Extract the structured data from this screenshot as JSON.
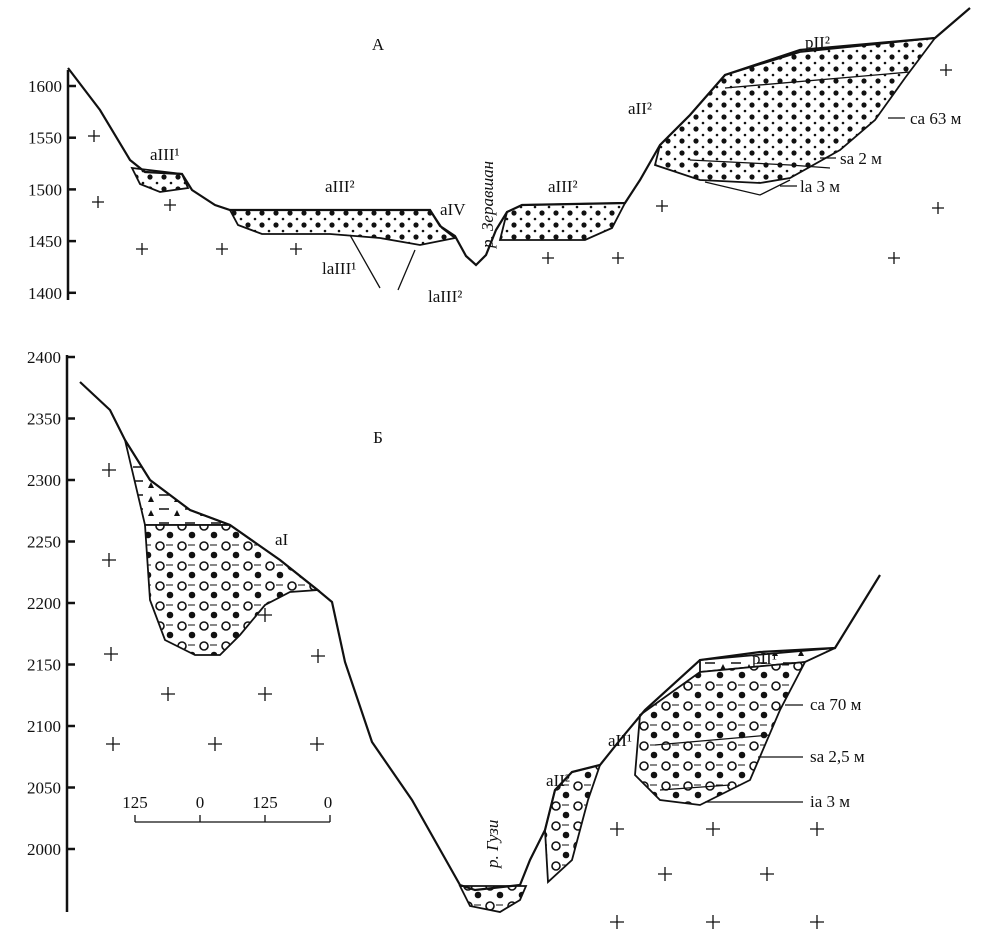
{
  "panel_a": {
    "title": "А",
    "y_ticks": [
      1600,
      1550,
      1500,
      1450,
      1400
    ],
    "labels": [
      "aIII¹",
      "aIII²",
      "aIV",
      "laIII¹",
      "laIII²",
      "р. Зеравшан",
      "aIII²",
      "aII²",
      "pII²",
      "ca 63 м",
      "sa 2 м",
      "la 3 м"
    ]
  },
  "panel_b": {
    "title": "Б",
    "y_ticks": [
      2400,
      2350,
      2300,
      2250,
      2200,
      2150,
      2100,
      2050,
      2000
    ],
    "labels": [
      "aI",
      "pII¹",
      "aII¹",
      "aII²",
      "ca 70 м",
      "sa 2,5 м",
      "ia 3 м",
      "р. Гузи"
    ],
    "scale_bar": [
      125,
      0,
      125,
      0
    ]
  }
}
